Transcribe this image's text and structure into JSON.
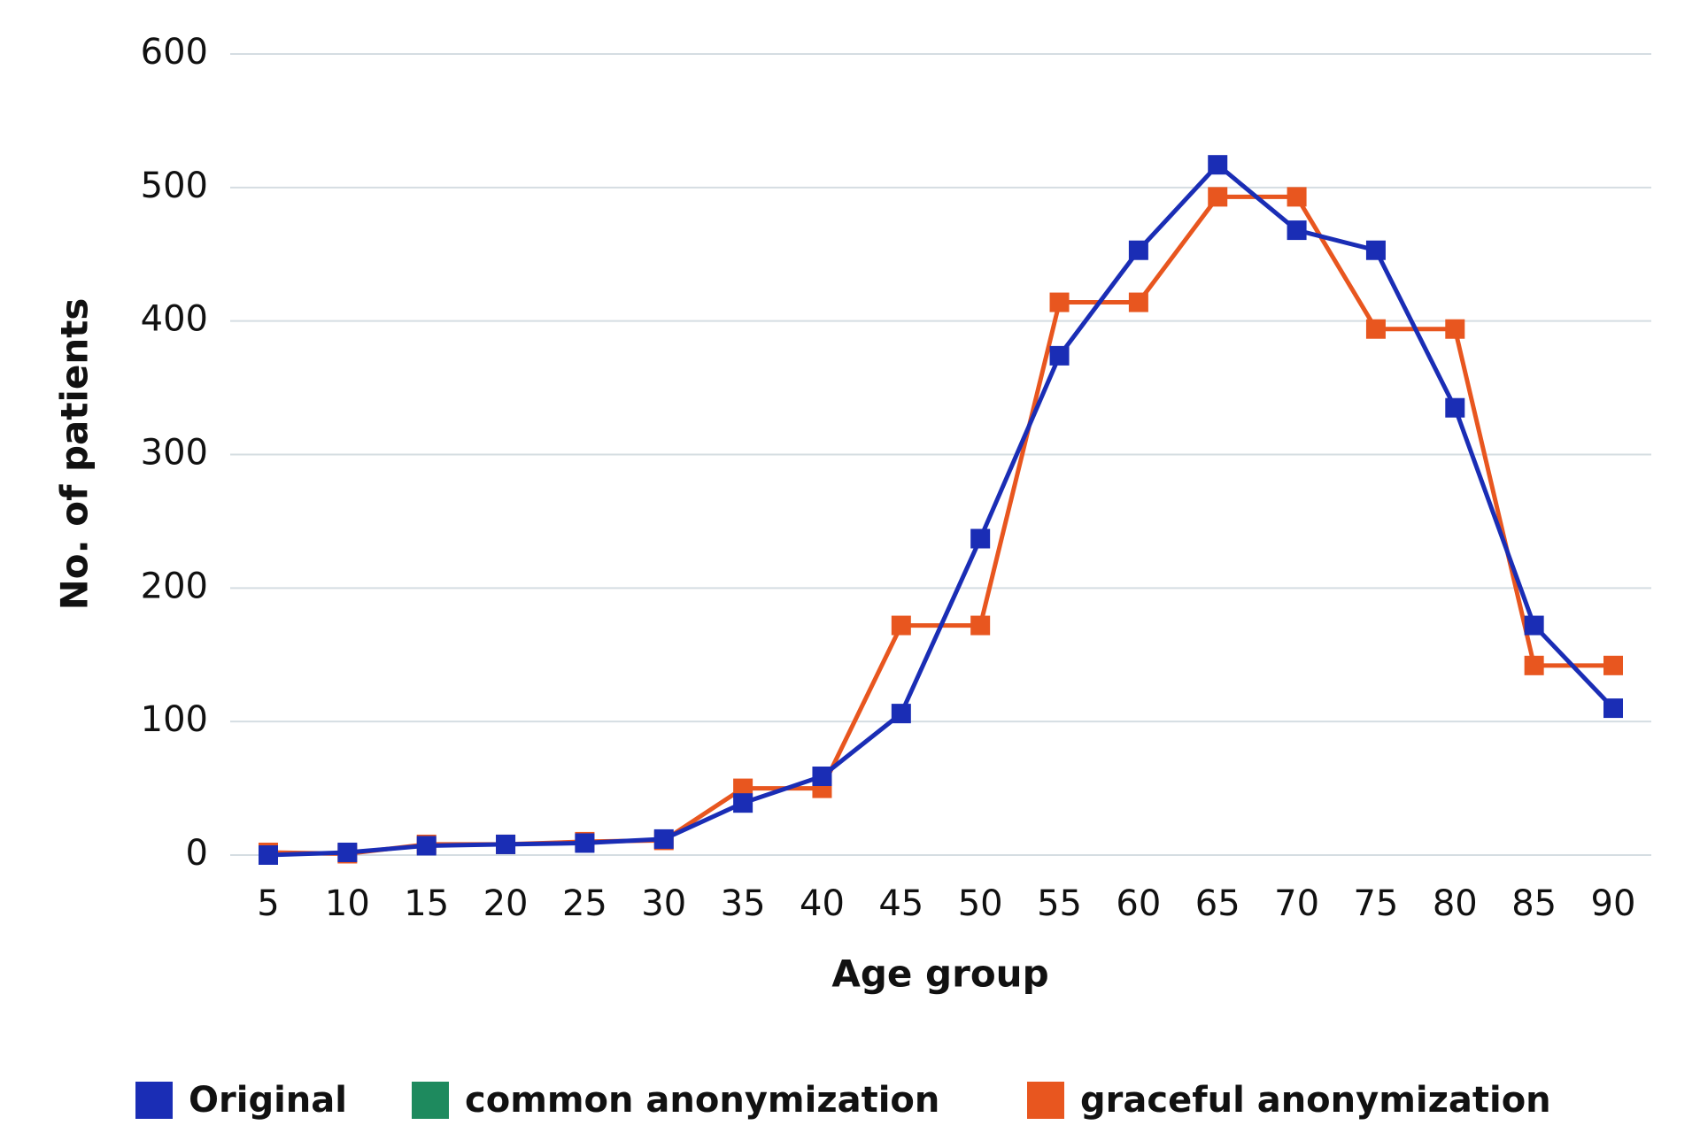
{
  "chart_data": {
    "type": "line",
    "x_label": "Age group",
    "y_label": "No. of patients",
    "categories": [
      "5",
      "10",
      "15",
      "20",
      "25",
      "30",
      "35",
      "40",
      "45",
      "50",
      "55",
      "60",
      "65",
      "70",
      "75",
      "80",
      "85",
      "90"
    ],
    "series": [
      {
        "name": "Original",
        "color": "#1a2db5",
        "values": [
          0,
          2,
          7,
          8,
          9,
          12,
          39,
          59,
          106,
          237,
          374,
          453,
          517,
          468,
          453,
          335,
          172,
          110
        ]
      },
      {
        "name": "common anonymization",
        "color": "#1e8a5e",
        "values": [
          null,
          null,
          null,
          null,
          null,
          null,
          null,
          null,
          null,
          null,
          null,
          null,
          null,
          null,
          null,
          null,
          null,
          null
        ]
      },
      {
        "name": "graceful anonymization",
        "color": "#e8561f",
        "values": [
          2,
          1,
          8,
          8,
          10,
          11,
          50,
          50,
          172,
          172,
          414,
          414,
          493,
          493,
          394,
          394,
          142,
          142
        ]
      }
    ],
    "ylim": [
      0,
      600
    ],
    "yticks": [
      0,
      100,
      200,
      300,
      400,
      500,
      600
    ],
    "grid": true,
    "legend": "bottom"
  }
}
